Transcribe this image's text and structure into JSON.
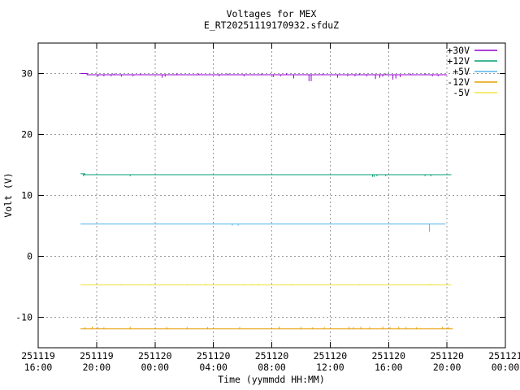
{
  "chart_data": {
    "type": "line",
    "title": "Voltages for MEX",
    "subtitle": "E_RT20251119170932.sfduZ",
    "xlabel": "Time (yymmdd HH:MM)",
    "ylabel": "Volt (V)",
    "ylim": [
      -15,
      35
    ],
    "yticks": [
      -10,
      0,
      10,
      20,
      30
    ],
    "xlim_hours": [
      0,
      32
    ],
    "xticks": [
      {
        "hour": 0,
        "date": "251119",
        "time": "16:00"
      },
      {
        "hour": 4,
        "date": "251119",
        "time": "20:00"
      },
      {
        "hour": 8,
        "date": "251120",
        "time": "00:00"
      },
      {
        "hour": 12,
        "date": "251120",
        "time": "04:00"
      },
      {
        "hour": 16,
        "date": "251120",
        "time": "08:00"
      },
      {
        "hour": 20,
        "date": "251120",
        "time": "12:00"
      },
      {
        "hour": 24,
        "date": "251120",
        "time": "16:00"
      },
      {
        "hour": 28,
        "date": "251120",
        "time": "20:00"
      },
      {
        "hour": 32,
        "date": "251121",
        "time": "00:00"
      }
    ],
    "grid": true,
    "grid_color": "#999999",
    "axis_color": "#000000",
    "legend_position": "top-right-inside",
    "series": [
      {
        "name": "+30V",
        "color": "#9400d3",
        "start": 2.9,
        "end": 28.0,
        "baseline": 29.8,
        "start_value": 30.0,
        "step_at": 3.35,
        "spikes": [
          [
            4.1,
            29.5
          ],
          [
            4.5,
            29.55
          ],
          [
            5.0,
            29.55
          ],
          [
            5.2,
            30.0
          ],
          [
            5.7,
            29.5
          ],
          [
            6.5,
            29.55
          ],
          [
            7.0,
            30.0
          ],
          [
            8.5,
            29.3
          ],
          [
            8.7,
            29.5
          ],
          [
            9.5,
            30.0
          ],
          [
            11.0,
            30.0
          ],
          [
            12.4,
            29.55
          ],
          [
            13.0,
            30.0
          ],
          [
            14.1,
            29.55
          ],
          [
            15.3,
            30.0
          ],
          [
            16.1,
            29.4
          ],
          [
            16.6,
            29.55
          ],
          [
            17.0,
            30.0
          ],
          [
            17.5,
            29.2
          ],
          [
            18.55,
            28.75
          ],
          [
            18.7,
            28.75
          ],
          [
            19.5,
            30.0
          ],
          [
            20.5,
            29.3
          ],
          [
            21.2,
            29.55
          ],
          [
            21.7,
            29.55
          ],
          [
            22.0,
            30.0
          ],
          [
            22.5,
            29.55
          ],
          [
            23.1,
            29.1
          ],
          [
            23.4,
            29.3
          ],
          [
            23.6,
            29.5
          ],
          [
            23.8,
            30.0
          ],
          [
            24.3,
            29.0
          ],
          [
            24.5,
            29.2
          ],
          [
            24.8,
            29.4
          ],
          [
            25.5,
            30.0
          ],
          [
            26.5,
            30.0
          ],
          [
            27.0,
            29.55
          ],
          [
            27.4,
            29.55
          ]
        ]
      },
      {
        "name": "+12V",
        "color": "#009e73",
        "start": 2.9,
        "end": 28.3,
        "baseline": 13.4,
        "start_value": 13.55,
        "step_at": 3.2,
        "spikes": [
          [
            3.1,
            13.15
          ],
          [
            6.3,
            13.15
          ],
          [
            22.9,
            13.05
          ],
          [
            23.0,
            13.05
          ],
          [
            23.2,
            13.15
          ],
          [
            23.8,
            13.15
          ],
          [
            26.5,
            13.15
          ],
          [
            26.9,
            13.15
          ]
        ]
      },
      {
        "name": "+5V",
        "color": "#56b4e9",
        "start": 2.9,
        "end": 27.9,
        "baseline": 5.3,
        "start_value": 5.3,
        "step_at": null,
        "spikes": [
          [
            13.3,
            5.05
          ],
          [
            13.7,
            5.05
          ],
          [
            26.8,
            4.0
          ]
        ]
      },
      {
        "name": "-12V",
        "color": "#e69f00",
        "start": 2.9,
        "end": 28.4,
        "baseline": -11.9,
        "start_value": -11.9,
        "step_at": null,
        "spikes": [
          [
            3.2,
            -11.65
          ],
          [
            3.7,
            -11.55
          ],
          [
            4.1,
            -11.6
          ],
          [
            4.5,
            -11.65
          ],
          [
            6.3,
            -11.55
          ],
          [
            8.8,
            -11.6
          ],
          [
            10.2,
            -11.6
          ],
          [
            11.6,
            -11.6
          ],
          [
            12.0,
            -11.65
          ],
          [
            13.8,
            -11.6
          ],
          [
            16.5,
            -11.55
          ],
          [
            18.0,
            -11.6
          ],
          [
            18.8,
            -11.65
          ],
          [
            19.6,
            -11.6
          ],
          [
            21.3,
            -11.55
          ],
          [
            21.6,
            -11.6
          ],
          [
            22.1,
            -11.55
          ],
          [
            22.7,
            -11.6
          ],
          [
            23.6,
            -11.55
          ],
          [
            24.1,
            -11.6
          ],
          [
            24.7,
            -11.55
          ],
          [
            25.2,
            -11.6
          ],
          [
            25.9,
            -11.65
          ],
          [
            27.7,
            -11.55
          ],
          [
            28.1,
            -11.6
          ]
        ]
      },
      {
        "name": "-5V",
        "color": "#f0e442",
        "start": 2.9,
        "end": 28.3,
        "baseline": -4.7,
        "start_value": -4.7,
        "step_at": null,
        "spikes": [
          [
            5.7,
            -4.5
          ],
          [
            7.7,
            -4.55
          ],
          [
            10.2,
            -4.5
          ],
          [
            11.5,
            -4.45
          ],
          [
            12.0,
            -4.5
          ],
          [
            14.1,
            -4.55
          ],
          [
            14.7,
            -4.5
          ],
          [
            15.1,
            -4.5
          ],
          [
            17.4,
            -4.5
          ],
          [
            22.0,
            -4.55
          ],
          [
            26.7,
            -4.5
          ],
          [
            26.9,
            -4.5
          ]
        ]
      }
    ]
  }
}
